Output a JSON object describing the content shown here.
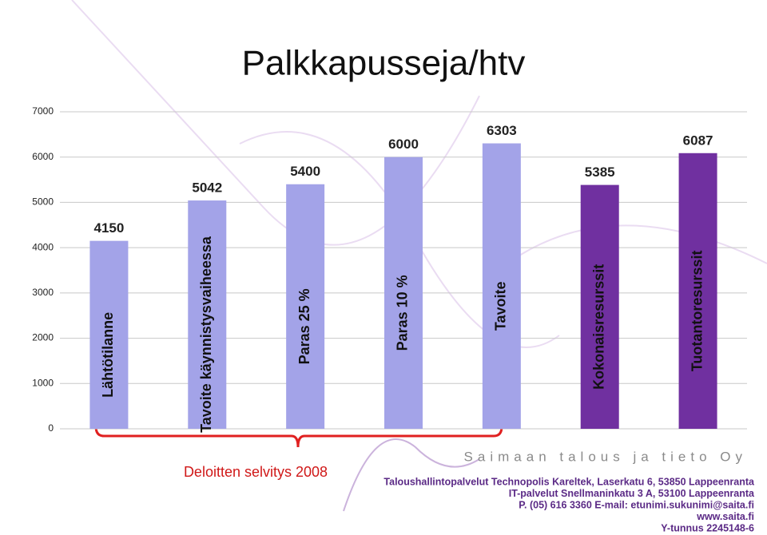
{
  "chart_data": {
    "type": "bar",
    "title": "Palkkapusseja/htv",
    "categories": [
      "Lähtötilanne",
      "Tavoite käynnistysvaiheessa",
      "Paras 25 %",
      "Paras 10 %",
      "Tavoite",
      "Kokonaisresurssit",
      "Tuotantoresurssit"
    ],
    "values": [
      4150,
      5042,
      5400,
      6000,
      6303,
      5385,
      6087
    ],
    "colors": [
      "#a3a3e8",
      "#a3a3e8",
      "#a3a3e8",
      "#a3a3e8",
      "#a3a3e8",
      "#7030a0",
      "#7030a0"
    ],
    "ylim": [
      0,
      7000
    ],
    "yticks": [
      0,
      1000,
      2000,
      3000,
      4000,
      5000,
      6000,
      7000
    ],
    "grid": true,
    "annotation": "Deloitten selvitys 2008"
  },
  "footer": {
    "company": "Saimaan talous ja tieto Oy",
    "lines": [
      "Taloushallintopalvelut Technopolis Kareltek, Laserkatu 6, 53850 Lappeenranta",
      "IT-palvelut Snellmaninkatu 3 A, 53100 Lappeenranta",
      "P. (05) 616 3360    E-mail: etunimi.sukunimi@saita.fi",
      "www.saita.fi",
      "Y-tunnus 2245148-6"
    ]
  }
}
